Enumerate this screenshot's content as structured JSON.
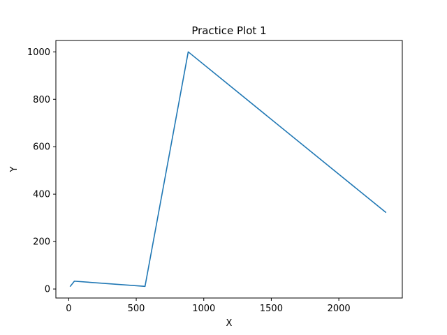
{
  "chart_data": {
    "type": "line",
    "title": "Practice Plot 1",
    "xlabel": "X",
    "ylabel": "Y",
    "xlim": [
      -95,
      2470
    ],
    "ylim": [
      -38,
      1048
    ],
    "xticks": [
      0,
      500,
      1000,
      1500,
      2000
    ],
    "yticks": [
      0,
      200,
      400,
      600,
      800,
      1000
    ],
    "grid": false,
    "series": [
      {
        "color": "#1f77b4",
        "x": [
          10,
          42,
          565,
          885,
          2350
        ],
        "y": [
          10,
          33,
          11,
          1000,
          322
        ]
      }
    ]
  }
}
